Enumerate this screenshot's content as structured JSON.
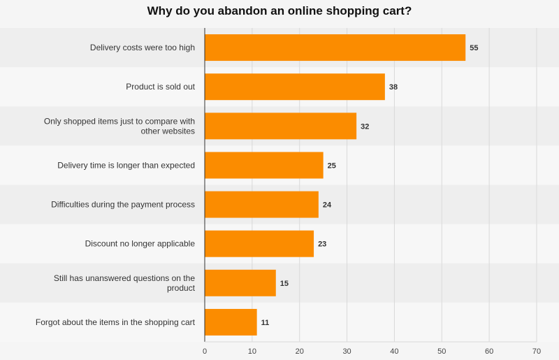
{
  "chart_data": {
    "type": "bar",
    "orientation": "horizontal",
    "title": "Why do you abandon an online shopping cart?",
    "categories": [
      "Delivery costs were too high",
      "Product is sold out",
      "Only shopped items just to compare with other websites",
      "Delivery time is longer than expected",
      "Difficulties during the payment process",
      "Discount no longer applicable",
      "Still has unanswered questions on the product",
      "Forgot about the items in the shopping cart"
    ],
    "category_lines": [
      [
        "Delivery costs were too high"
      ],
      [
        "Product is sold out"
      ],
      [
        "Only shopped items just to compare with",
        "other websites"
      ],
      [
        "Delivery time is longer than expected"
      ],
      [
        "Difficulties during the payment process"
      ],
      [
        "Discount no longer applicable"
      ],
      [
        "Still has unanswered questions on the",
        "product"
      ],
      [
        "Forgot about the items in the shopping cart"
      ]
    ],
    "values": [
      55,
      38,
      32,
      25,
      24,
      23,
      15,
      11
    ],
    "xlim": [
      0,
      70
    ],
    "xticks": [
      0,
      10,
      20,
      30,
      40,
      50,
      60,
      70
    ],
    "xlabel": "",
    "ylabel": "",
    "grid": true,
    "colors": {
      "bar": "#fb8c00",
      "band_dark": "#eeeeee",
      "band_light": "#f7f7f7",
      "grid": "#d9d9d9",
      "axis": "#333333"
    }
  }
}
